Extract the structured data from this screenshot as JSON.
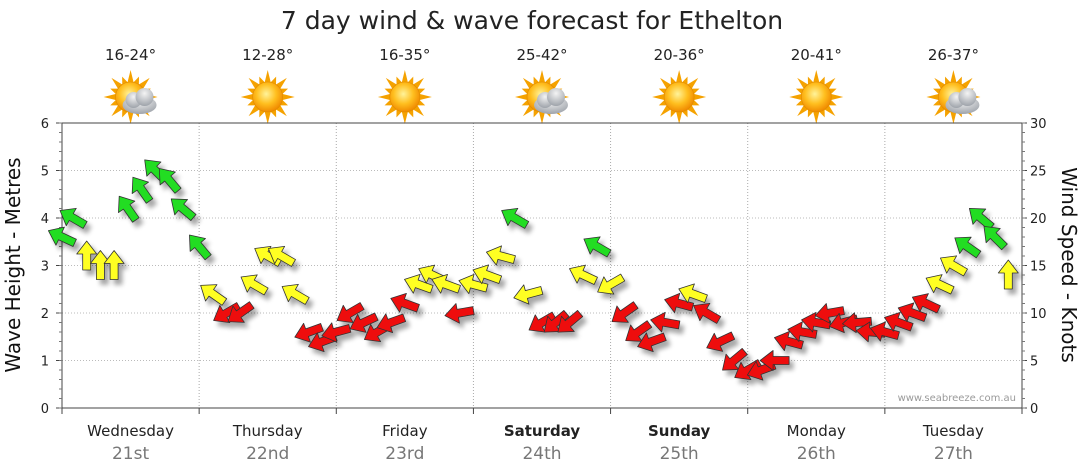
{
  "chart_data": {
    "type": "scatter",
    "title": "7 day wind & wave forecast for Ethelton",
    "ylabel": "Wave Height - Metres",
    "y2label": "Wind Speed - Knots",
    "ylim": [
      0,
      6
    ],
    "y2lim": [
      0,
      30
    ],
    "yticks": [
      "0",
      "1",
      "2",
      "3",
      "4",
      "5",
      "6"
    ],
    "y2ticks": [
      "0",
      "5",
      "10",
      "15",
      "20",
      "25",
      "30"
    ],
    "grid": true,
    "watermark": "www.seabreeze.com.au",
    "days": [
      {
        "name": "Wednesday",
        "date": "21st",
        "temp": "16-24°",
        "weather": "partly-cloudy-icon",
        "bold": false
      },
      {
        "name": "Thursday",
        "date": "22nd",
        "temp": "12-28°",
        "weather": "sunny-icon",
        "bold": false
      },
      {
        "name": "Friday",
        "date": "23rd",
        "temp": "16-35°",
        "weather": "sunny-icon",
        "bold": false
      },
      {
        "name": "Saturday",
        "date": "24th",
        "temp": "25-42°",
        "weather": "partly-cloudy-icon",
        "bold": true
      },
      {
        "name": "Sunday",
        "date": "25th",
        "temp": "20-36°",
        "weather": "sunny-icon",
        "bold": true
      },
      {
        "name": "Monday",
        "date": "26th",
        "temp": "20-41°",
        "weather": "sunny-icon",
        "bold": false
      },
      {
        "name": "Tuesday",
        "date": "27th",
        "temp": "26-37°",
        "weather": "partly-cloudy-icon",
        "bold": false
      }
    ],
    "colors": {
      "green": "#22dd22",
      "yellow": "#ffff22",
      "red": "#ee1111",
      "stroke": "#333333"
    },
    "series": [
      {
        "name": "wind",
        "x": [
          0.0,
          0.08,
          0.18,
          0.28,
          0.38,
          0.48,
          0.58,
          0.68,
          0.78,
          0.88,
          1.0,
          1.1,
          1.2,
          1.3,
          1.4,
          1.5,
          1.6,
          1.7,
          1.8,
          1.9,
          2.0,
          2.1,
          2.2,
          2.3,
          2.4,
          2.5,
          2.6,
          2.7,
          2.8,
          2.9,
          3.0,
          3.1,
          3.2,
          3.3,
          3.4,
          3.5,
          3.6,
          3.7,
          3.8,
          3.9,
          4.0,
          4.1,
          4.2,
          4.3,
          4.4,
          4.5,
          4.6,
          4.7,
          4.8,
          4.9,
          5.0,
          5.1,
          5.2,
          5.3,
          5.4,
          5.5,
          5.6,
          5.7,
          5.8,
          5.9,
          6.0,
          6.1,
          6.2,
          6.3,
          6.4,
          6.5,
          6.6,
          6.7,
          6.8,
          6.9
        ],
        "y": [
          18,
          20,
          16,
          15,
          15,
          21,
          23,
          25,
          24,
          21,
          17,
          12,
          10,
          10,
          13,
          16,
          16,
          12,
          8,
          7,
          8,
          10,
          9,
          8,
          9,
          11,
          13,
          14,
          13,
          10,
          13,
          14,
          16,
          20,
          12,
          9,
          9,
          9,
          14,
          17,
          13,
          10,
          8,
          7,
          9,
          11,
          12,
          10,
          7,
          5,
          4,
          4,
          5,
          7,
          8,
          9,
          10,
          9,
          9,
          8,
          8,
          9,
          10,
          11,
          13,
          15,
          17,
          20,
          18,
          14
        ],
        "dir": [
          -65,
          -60,
          0,
          0,
          0,
          -35,
          -35,
          -45,
          -40,
          -50,
          -40,
          -55,
          -120,
          -125,
          -60,
          -60,
          -60,
          -60,
          -110,
          -110,
          -105,
          -120,
          -115,
          -120,
          -110,
          -70,
          -70,
          -65,
          -70,
          -100,
          -75,
          -70,
          -75,
          -60,
          -105,
          -120,
          -130,
          -130,
          -65,
          -60,
          -120,
          -125,
          -125,
          -110,
          -80,
          -75,
          -70,
          -60,
          -115,
          -130,
          -120,
          -110,
          -90,
          -75,
          -80,
          -80,
          -100,
          -105,
          -95,
          -85,
          -75,
          -70,
          -70,
          -65,
          -65,
          -60,
          -55,
          -50,
          -45,
          0
        ]
      }
    ]
  }
}
